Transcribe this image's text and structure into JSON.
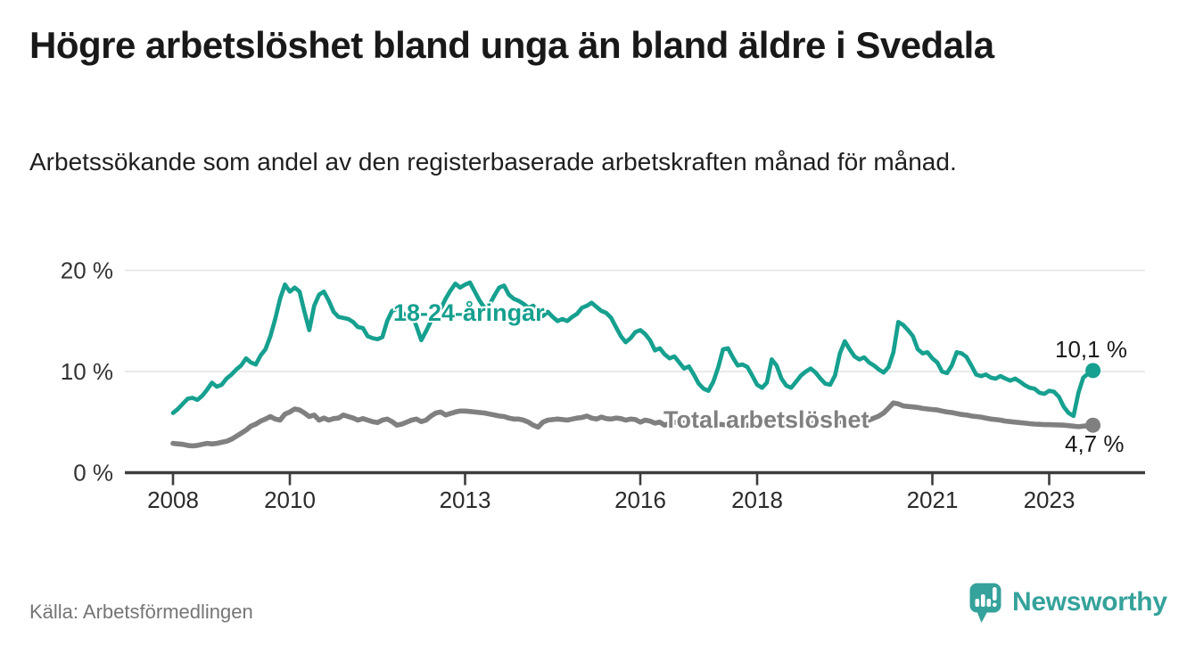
{
  "header": {
    "title": "Högre arbetslöshet bland unga än bland äldre i Svedala",
    "subtitle": "Arbetssökande som andel av den registerbaserade arbetskraften månad för månad."
  },
  "footer": {
    "source": "Källa: Arbetsförmedlingen",
    "logo_text": "Newsworthy"
  },
  "colors": {
    "young_line": "#16a08f",
    "total_line": "#808080",
    "logo_teal": "#35a29b",
    "axis": "#3d3d3d",
    "grid": "#e4e4e4",
    "tick_label": "#2b2b2b",
    "y_label": "#333333",
    "white": "#ffffff"
  },
  "chart_data": {
    "type": "line",
    "title": "Högre arbetslöshet bland unga än bland äldre i Svedala",
    "subtitle": "Arbetssökande som andel av den registerbaserade arbetskraften månad för månad.",
    "x_unit": "month",
    "x_start_year": 2008,
    "x_end": "2023-10",
    "ylim": [
      0,
      21
    ],
    "grid": "horizontal",
    "y_ticks": [
      {
        "value": 0,
        "label": "0 %"
      },
      {
        "value": 10,
        "label": "10 %"
      },
      {
        "value": 20,
        "label": "20 %"
      }
    ],
    "x_ticks": [
      {
        "year": 2008,
        "label": "2008"
      },
      {
        "year": 2010,
        "label": "2010"
      },
      {
        "year": 2013,
        "label": "2013"
      },
      {
        "year": 2016,
        "label": "2016"
      },
      {
        "year": 2018,
        "label": "2018"
      },
      {
        "year": 2021,
        "label": "2021"
      },
      {
        "year": 2023,
        "label": "2023"
      }
    ],
    "series": [
      {
        "name": "18-24-åringar",
        "color": "#16a08f",
        "end_label": "10,1 %",
        "end_value": 10.1,
        "values": [
          5.9,
          6.3,
          6.8,
          7.3,
          7.4,
          7.2,
          7.6,
          8.2,
          8.9,
          8.5,
          8.7,
          9.3,
          9.7,
          10.2,
          10.6,
          11.3,
          10.9,
          10.7,
          11.6,
          12.2,
          13.5,
          15.2,
          17.2,
          18.6,
          17.9,
          18.3,
          17.9,
          15.9,
          14.1,
          16.5,
          17.6,
          17.9,
          17.0,
          15.9,
          15.4,
          15.3,
          15.2,
          14.9,
          14.4,
          14.3,
          13.5,
          13.3,
          13.2,
          13.4,
          15.0,
          16.0,
          16.2,
          15.9,
          15.4,
          15.8,
          14.5,
          13.1,
          14.0,
          15.0,
          15.5,
          16.2,
          17.2,
          18.0,
          18.7,
          18.3,
          18.6,
          18.8,
          17.9,
          17.0,
          16.3,
          16.6,
          17.5,
          18.3,
          18.5,
          17.6,
          17.2,
          17.0,
          16.7,
          16.3,
          16.5,
          15.9,
          15.5,
          15.9,
          15.4,
          15.0,
          15.2,
          15.0,
          15.4,
          15.7,
          16.3,
          16.5,
          16.8,
          16.4,
          16.0,
          15.8,
          15.3,
          14.4,
          13.5,
          12.9,
          13.3,
          13.9,
          14.1,
          13.7,
          13.1,
          12.1,
          12.3,
          11.7,
          11.3,
          11.5,
          10.9,
          10.3,
          10.5,
          9.7,
          8.8,
          8.3,
          8.1,
          9.0,
          10.4,
          12.2,
          12.3,
          11.4,
          10.6,
          10.7,
          10.45,
          9.6,
          8.7,
          8.4,
          8.9,
          11.2,
          10.6,
          9.3,
          8.6,
          8.4,
          9.0,
          9.6,
          10.0,
          10.3,
          9.9,
          9.3,
          8.8,
          8.7,
          9.6,
          11.8,
          13.0,
          12.2,
          11.5,
          11.2,
          11.4,
          10.9,
          10.6,
          10.2,
          9.9,
          10.45,
          11.9,
          14.9,
          14.6,
          14.1,
          13.5,
          12.2,
          11.8,
          11.9,
          11.3,
          10.9,
          10.0,
          9.85,
          10.6,
          11.9,
          11.8,
          11.45,
          10.6,
          9.7,
          9.55,
          9.7,
          9.4,
          9.3,
          9.55,
          9.3,
          9.1,
          9.3,
          9.0,
          8.65,
          8.4,
          8.3,
          7.9,
          7.8,
          8.1,
          8.0,
          7.5,
          6.5,
          5.9,
          5.6,
          7.9,
          9.4,
          9.8,
          10.1
        ]
      },
      {
        "name": "Total arbetslöshet",
        "color": "#808080",
        "end_label": "4,7 %",
        "end_value": 4.7,
        "values": [
          2.9,
          2.85,
          2.8,
          2.7,
          2.65,
          2.7,
          2.8,
          2.9,
          2.85,
          2.9,
          3.0,
          3.1,
          3.3,
          3.6,
          3.9,
          4.2,
          4.6,
          4.8,
          5.1,
          5.3,
          5.55,
          5.3,
          5.2,
          5.8,
          6.0,
          6.3,
          6.2,
          5.9,
          5.55,
          5.7,
          5.2,
          5.4,
          5.2,
          5.35,
          5.4,
          5.7,
          5.55,
          5.4,
          5.2,
          5.35,
          5.2,
          5.05,
          4.95,
          5.2,
          5.3,
          5.05,
          4.7,
          4.8,
          5.0,
          5.2,
          5.3,
          5.05,
          5.2,
          5.6,
          5.9,
          6.0,
          5.7,
          5.85,
          6.0,
          6.1,
          6.1,
          6.05,
          6.0,
          5.95,
          5.9,
          5.8,
          5.7,
          5.6,
          5.55,
          5.4,
          5.3,
          5.3,
          5.2,
          5.0,
          4.7,
          4.5,
          5.0,
          5.2,
          5.25,
          5.3,
          5.25,
          5.2,
          5.3,
          5.4,
          5.45,
          5.6,
          5.4,
          5.3,
          5.5,
          5.35,
          5.3,
          5.4,
          5.35,
          5.2,
          5.3,
          5.25,
          5.0,
          5.2,
          5.1,
          4.9,
          5.0,
          4.7,
          4.9,
          5.0,
          4.95,
          4.9,
          4.85,
          4.8,
          4.8,
          4.75,
          4.7,
          4.75,
          4.8,
          4.75,
          4.7,
          4.75,
          4.8,
          4.75,
          4.7,
          4.75,
          4.7,
          4.75,
          4.8,
          4.75,
          4.7,
          4.75,
          4.8,
          4.75,
          4.7,
          4.75,
          4.8,
          4.85,
          4.9,
          4.95,
          5.0,
          5.05,
          5.0,
          5.05,
          5.1,
          5.1,
          5.15,
          5.1,
          5.15,
          5.2,
          5.4,
          5.6,
          5.9,
          6.4,
          6.9,
          6.8,
          6.6,
          6.55,
          6.5,
          6.45,
          6.35,
          6.3,
          6.25,
          6.2,
          6.1,
          6.0,
          5.95,
          5.85,
          5.75,
          5.7,
          5.6,
          5.55,
          5.5,
          5.4,
          5.3,
          5.25,
          5.2,
          5.1,
          5.05,
          5.0,
          4.95,
          4.9,
          4.85,
          4.8,
          4.78,
          4.75,
          4.75,
          4.73,
          4.72,
          4.7,
          4.65,
          4.6,
          4.55,
          4.6,
          4.65,
          4.7
        ]
      }
    ]
  }
}
